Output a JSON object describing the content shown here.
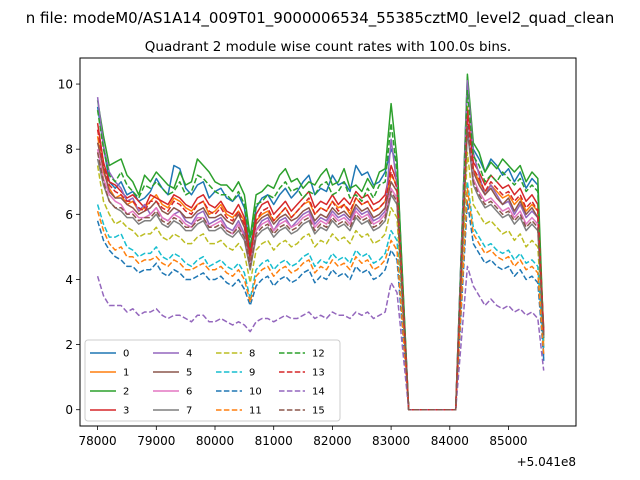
{
  "figure": {
    "suptitle": "n file: modeM0/AS1A14_009T01_9000006534_55385cztM0_level2_quad_clean",
    "title": "Quadrant 2 module wise count rates with 100.0s bins.",
    "offset_text": "+5.041e8"
  },
  "chart_data": {
    "type": "line",
    "title": "Quadrant 2 module wise count rates with 100.0s bins.",
    "xlabel": "",
    "ylabel": "",
    "x_offset": 504100000,
    "xlim": [
      77700,
      86150
    ],
    "ylim": [
      -0.5,
      10.8
    ],
    "xticks": [
      78000,
      79000,
      80000,
      81000,
      82000,
      83000,
      84000,
      85000
    ],
    "yticks": [
      0,
      2,
      4,
      6,
      8,
      10
    ],
    "grid": false,
    "legend": {
      "placement": "lower-left",
      "columns": 4
    },
    "x": [
      78000,
      78100,
      78200,
      78300,
      78400,
      78500,
      78600,
      78700,
      78800,
      78900,
      79000,
      79100,
      79200,
      79300,
      79400,
      79500,
      79600,
      79700,
      79800,
      79900,
      80000,
      80100,
      80200,
      80300,
      80400,
      80500,
      80600,
      80700,
      80800,
      80900,
      81000,
      81100,
      81200,
      81300,
      81400,
      81500,
      81600,
      81700,
      81800,
      81900,
      82000,
      82100,
      82200,
      82300,
      82400,
      82500,
      82600,
      82700,
      82800,
      82900,
      83000,
      83100,
      83300,
      84100,
      84300,
      84400,
      84500,
      84600,
      84700,
      84800,
      84900,
      85000,
      85100,
      85200,
      85300,
      85400,
      85500,
      85600
    ],
    "series": [
      {
        "name": "0",
        "color": "#1f77b4",
        "dash": "solid",
        "values": [
          9.3,
          8.1,
          7.0,
          6.8,
          7.0,
          6.6,
          6.7,
          6.4,
          6.5,
          6.7,
          7.1,
          6.8,
          6.6,
          7.5,
          7.4,
          6.8,
          6.6,
          6.9,
          7.0,
          6.5,
          6.7,
          6.8,
          6.5,
          6.4,
          6.6,
          6.2,
          4.9,
          6.2,
          6.5,
          6.6,
          6.3,
          6.6,
          6.8,
          6.5,
          6.7,
          7.0,
          7.2,
          6.6,
          6.8,
          6.7,
          7.2,
          6.9,
          7.0,
          6.7,
          7.5,
          7.2,
          7.3,
          6.9,
          7.0,
          7.3,
          8.0,
          7.6,
          0,
          0,
          10.2,
          8.0,
          7.7,
          7.3,
          7.7,
          7.5,
          7.2,
          7.4,
          7.0,
          7.3,
          6.8,
          7.1,
          6.9,
          1.5
        ]
      },
      {
        "name": "1",
        "color": "#ff7f0e",
        "dash": "solid",
        "values": [
          8.4,
          7.3,
          6.8,
          6.5,
          6.6,
          6.3,
          6.4,
          6.1,
          6.2,
          6.4,
          6.6,
          6.3,
          6.2,
          6.5,
          6.4,
          6.2,
          6.1,
          6.3,
          6.4,
          6.0,
          6.1,
          6.3,
          6.0,
          5.9,
          6.1,
          5.8,
          4.6,
          5.8,
          6.0,
          6.1,
          5.8,
          6.0,
          6.2,
          5.9,
          6.1,
          6.3,
          6.4,
          6.0,
          6.2,
          6.1,
          6.4,
          6.2,
          6.3,
          6.0,
          6.5,
          6.3,
          6.4,
          6.1,
          6.2,
          6.4,
          7.2,
          6.9,
          0,
          0,
          9.3,
          7.4,
          7.0,
          6.7,
          6.9,
          6.7,
          6.5,
          6.6,
          6.3,
          6.5,
          6.1,
          6.3,
          6.1,
          1.9
        ]
      },
      {
        "name": "2",
        "color": "#2ca02c",
        "dash": "solid",
        "values": [
          9.5,
          8.4,
          7.5,
          7.6,
          7.7,
          7.2,
          7.0,
          6.6,
          7.2,
          7.0,
          7.3,
          7.1,
          6.9,
          6.8,
          7.3,
          6.9,
          7.0,
          7.7,
          7.5,
          7.3,
          7.0,
          6.9,
          6.9,
          6.7,
          7.0,
          6.6,
          5.3,
          6.6,
          6.7,
          6.9,
          6.8,
          7.2,
          7.4,
          7.0,
          7.1,
          6.8,
          7.0,
          6.9,
          7.2,
          7.4,
          6.9,
          7.0,
          7.4,
          6.8,
          6.9,
          6.7,
          7.1,
          6.8,
          7.3,
          7.4,
          9.4,
          7.7,
          0,
          0,
          10.3,
          8.2,
          7.9,
          7.3,
          7.6,
          7.4,
          7.7,
          7.5,
          7.3,
          7.5,
          7.0,
          7.3,
          7.1,
          2.2
        ]
      },
      {
        "name": "3",
        "color": "#d62728",
        "dash": "solid",
        "values": [
          8.8,
          7.6,
          7.0,
          6.9,
          6.7,
          6.5,
          6.6,
          6.4,
          6.2,
          6.6,
          6.5,
          6.4,
          6.3,
          6.6,
          6.5,
          6.3,
          6.2,
          6.5,
          6.6,
          6.3,
          6.2,
          6.4,
          6.1,
          6.0,
          6.3,
          5.9,
          4.8,
          6.0,
          6.3,
          6.4,
          6.0,
          6.2,
          6.4,
          6.1,
          6.3,
          6.5,
          6.7,
          6.2,
          6.4,
          6.3,
          6.6,
          6.3,
          6.5,
          6.3,
          6.7,
          6.5,
          6.6,
          6.3,
          6.4,
          6.6,
          7.5,
          7.0,
          0,
          0,
          9.2,
          7.6,
          7.3,
          6.9,
          7.2,
          7.0,
          6.8,
          6.9,
          6.6,
          6.8,
          6.4,
          6.6,
          6.3,
          2.4
        ]
      },
      {
        "name": "4",
        "color": "#9467bd",
        "dash": "solid",
        "values": [
          9.6,
          8.1,
          7.3,
          7.0,
          6.8,
          6.4,
          6.5,
          6.1,
          6.3,
          6.0,
          6.2,
          5.9,
          5.8,
          6.0,
          6.1,
          5.8,
          5.7,
          6.0,
          6.1,
          5.7,
          5.8,
          5.9,
          5.6,
          5.5,
          5.8,
          5.4,
          4.3,
          5.5,
          5.8,
          5.9,
          5.5,
          5.8,
          5.9,
          5.6,
          5.8,
          6.0,
          6.1,
          5.7,
          5.9,
          5.8,
          6.1,
          5.9,
          6.0,
          5.8,
          6.2,
          6.0,
          6.1,
          5.8,
          5.9,
          6.1,
          8.3,
          6.9,
          0,
          0,
          10.1,
          7.9,
          7.2,
          6.6,
          6.9,
          6.6,
          6.3,
          6.4,
          6.0,
          6.3,
          5.9,
          6.1,
          5.9,
          2.3
        ]
      },
      {
        "name": "5",
        "color": "#8c564b",
        "dash": "solid",
        "values": [
          8.2,
          7.4,
          6.7,
          6.5,
          6.5,
          6.3,
          6.2,
          6.0,
          6.1,
          6.2,
          6.4,
          6.1,
          6.0,
          6.2,
          6.1,
          5.9,
          5.9,
          6.1,
          6.2,
          5.9,
          5.9,
          6.0,
          5.8,
          5.7,
          6.0,
          5.6,
          4.5,
          5.7,
          5.9,
          6.0,
          5.7,
          5.9,
          6.0,
          5.8,
          5.9,
          6.1,
          6.2,
          5.8,
          6.0,
          5.9,
          6.2,
          6.0,
          6.1,
          5.9,
          6.3,
          6.1,
          6.2,
          5.9,
          6.0,
          6.2,
          7.0,
          6.7,
          0,
          0,
          8.8,
          7.3,
          6.9,
          6.6,
          6.8,
          6.5,
          6.3,
          6.5,
          6.1,
          6.4,
          6.0,
          6.2,
          5.9,
          2.5
        ]
      },
      {
        "name": "6",
        "color": "#e377c2",
        "dash": "solid",
        "values": [
          8.0,
          7.1,
          6.6,
          6.4,
          6.3,
          6.0,
          6.1,
          5.9,
          5.9,
          6.0,
          6.2,
          5.9,
          5.8,
          6.0,
          5.9,
          5.7,
          5.6,
          5.9,
          5.9,
          5.6,
          5.7,
          5.8,
          5.5,
          5.4,
          5.7,
          5.3,
          4.4,
          5.5,
          5.7,
          5.8,
          5.5,
          5.7,
          5.8,
          5.6,
          5.7,
          5.9,
          6.0,
          5.6,
          5.8,
          5.7,
          6.0,
          5.8,
          5.9,
          5.7,
          6.1,
          5.9,
          6.0,
          5.7,
          5.8,
          6.0,
          6.8,
          6.5,
          0,
          0,
          9.0,
          7.1,
          6.7,
          6.4,
          6.5,
          6.3,
          6.1,
          6.2,
          5.9,
          6.1,
          5.7,
          5.9,
          5.7,
          2.3
        ]
      },
      {
        "name": "7",
        "color": "#7f7f7f",
        "dash": "solid",
        "values": [
          7.7,
          6.9,
          6.4,
          6.2,
          6.1,
          5.9,
          5.9,
          5.7,
          5.8,
          5.8,
          6.0,
          5.7,
          5.6,
          5.8,
          5.7,
          5.5,
          5.5,
          5.7,
          5.8,
          5.5,
          5.5,
          5.6,
          5.4,
          5.3,
          5.5,
          5.2,
          4.3,
          5.3,
          5.5,
          5.6,
          5.3,
          5.5,
          5.6,
          5.4,
          5.5,
          5.7,
          5.8,
          5.4,
          5.6,
          5.5,
          5.8,
          5.6,
          5.7,
          5.5,
          5.9,
          5.7,
          5.8,
          5.5,
          5.6,
          5.8,
          6.6,
          6.3,
          0,
          0,
          8.6,
          6.9,
          6.5,
          6.2,
          6.3,
          6.1,
          5.9,
          6.0,
          5.7,
          5.9,
          5.5,
          5.7,
          5.5,
          2.2
        ]
      },
      {
        "name": "8",
        "color": "#bcbd22",
        "dash": "dashed",
        "values": [
          7.5,
          6.4,
          6.0,
          5.7,
          5.8,
          5.6,
          5.5,
          5.3,
          5.4,
          5.4,
          5.6,
          5.3,
          5.2,
          5.4,
          5.3,
          5.1,
          5.1,
          5.3,
          5.4,
          5.1,
          5.1,
          5.2,
          5.0,
          4.9,
          5.1,
          4.8,
          3.9,
          4.9,
          5.1,
          5.2,
          4.9,
          5.1,
          5.2,
          5.0,
          5.1,
          5.3,
          5.4,
          5.0,
          5.2,
          5.1,
          5.4,
          5.2,
          5.3,
          5.1,
          5.5,
          5.3,
          5.4,
          5.1,
          5.2,
          5.4,
          6.2,
          5.9,
          0,
          0,
          7.9,
          6.3,
          6.0,
          5.7,
          5.8,
          5.6,
          5.4,
          5.5,
          5.2,
          5.4,
          5.0,
          5.2,
          5.0,
          2.1
        ]
      },
      {
        "name": "9",
        "color": "#17becf",
        "dash": "dashed",
        "values": [
          6.3,
          5.7,
          5.3,
          5.3,
          5.4,
          5.0,
          4.9,
          4.7,
          4.8,
          4.8,
          5.0,
          4.7,
          4.6,
          4.8,
          4.7,
          4.5,
          4.4,
          4.6,
          4.7,
          4.4,
          4.5,
          4.6,
          4.4,
          4.3,
          4.5,
          4.2,
          3.4,
          4.3,
          4.5,
          4.6,
          4.3,
          4.5,
          4.6,
          4.4,
          4.5,
          4.7,
          4.8,
          4.4,
          4.6,
          4.5,
          4.8,
          4.6,
          4.7,
          4.5,
          4.9,
          4.7,
          4.8,
          4.5,
          4.6,
          4.8,
          5.5,
          5.2,
          0,
          0,
          7.0,
          5.6,
          5.3,
          5.0,
          5.1,
          4.9,
          4.8,
          4.9,
          4.6,
          4.8,
          4.5,
          4.6,
          4.4,
          1.9
        ]
      },
      {
        "name": "10",
        "color": "#1f77b4",
        "dash": "dashed",
        "values": [
          5.8,
          5.2,
          4.9,
          4.7,
          4.6,
          4.4,
          4.4,
          4.2,
          4.3,
          4.3,
          4.5,
          4.2,
          4.1,
          4.3,
          4.2,
          4.0,
          4.0,
          4.1,
          4.2,
          4.0,
          4.0,
          4.1,
          3.9,
          3.8,
          4.0,
          3.7,
          3.2,
          3.8,
          4.0,
          4.1,
          3.8,
          4.0,
          4.1,
          3.9,
          4.0,
          4.2,
          4.3,
          3.9,
          4.1,
          4.0,
          4.3,
          4.1,
          4.2,
          4.0,
          4.4,
          4.2,
          4.3,
          4.0,
          4.1,
          4.3,
          4.9,
          4.6,
          0,
          0,
          6.4,
          5.1,
          4.8,
          4.5,
          4.6,
          4.4,
          4.3,
          4.4,
          4.1,
          4.3,
          4.0,
          4.1,
          3.9,
          1.6
        ]
      },
      {
        "name": "11",
        "color": "#ff7f0e",
        "dash": "dashed",
        "values": [
          6.1,
          5.5,
          5.1,
          4.9,
          5.0,
          4.7,
          4.7,
          4.5,
          4.6,
          4.6,
          4.7,
          4.5,
          4.4,
          4.6,
          4.5,
          4.3,
          4.3,
          4.4,
          4.5,
          4.3,
          4.3,
          4.4,
          4.2,
          4.1,
          4.3,
          4.0,
          3.3,
          4.1,
          4.3,
          4.4,
          4.1,
          4.3,
          4.4,
          4.2,
          4.3,
          4.5,
          4.6,
          4.2,
          4.4,
          4.3,
          4.6,
          4.4,
          4.5,
          4.3,
          4.7,
          4.5,
          4.6,
          4.3,
          4.4,
          4.6,
          5.2,
          4.9,
          0,
          0,
          6.8,
          5.4,
          5.1,
          4.8,
          4.9,
          4.7,
          4.6,
          4.7,
          4.4,
          4.6,
          4.3,
          4.4,
          4.2,
          1.7
        ]
      },
      {
        "name": "12",
        "color": "#2ca02c",
        "dash": "dashed",
        "values": [
          9.2,
          8.0,
          7.2,
          7.0,
          7.3,
          6.9,
          6.7,
          6.5,
          6.9,
          6.8,
          7.0,
          6.8,
          6.6,
          6.7,
          7.0,
          6.6,
          6.7,
          7.2,
          7.1,
          6.9,
          6.7,
          6.6,
          6.6,
          6.4,
          6.7,
          6.3,
          5.0,
          6.3,
          6.4,
          6.6,
          6.5,
          6.8,
          7.0,
          6.7,
          6.8,
          6.5,
          6.7,
          6.6,
          6.9,
          7.0,
          6.6,
          6.7,
          7.0,
          6.5,
          6.6,
          6.4,
          6.8,
          6.5,
          6.9,
          7.0,
          8.8,
          7.3,
          0,
          0,
          9.8,
          7.8,
          7.5,
          7.0,
          7.2,
          7.0,
          7.3,
          7.1,
          6.9,
          7.1,
          6.7,
          6.9,
          6.7,
          2.2
        ]
      },
      {
        "name": "13",
        "color": "#d62728",
        "dash": "dashed",
        "values": [
          8.6,
          7.5,
          6.9,
          6.7,
          6.6,
          6.4,
          6.4,
          6.2,
          6.1,
          6.4,
          6.4,
          6.2,
          6.1,
          6.4,
          6.3,
          6.1,
          6.0,
          6.3,
          6.4,
          6.1,
          6.0,
          6.2,
          5.9,
          5.8,
          6.1,
          5.7,
          4.7,
          5.8,
          6.1,
          6.2,
          5.8,
          6.0,
          6.2,
          5.9,
          6.1,
          6.3,
          6.5,
          6.0,
          6.2,
          6.1,
          6.4,
          6.1,
          6.3,
          6.1,
          6.5,
          6.3,
          6.4,
          6.1,
          6.2,
          6.4,
          7.3,
          6.8,
          0,
          0,
          9.0,
          7.4,
          7.1,
          6.7,
          7.0,
          6.8,
          6.6,
          6.7,
          6.4,
          6.6,
          6.2,
          6.4,
          6.1,
          2.3
        ]
      },
      {
        "name": "14",
        "color": "#9467bd",
        "dash": "dashed",
        "values": [
          4.1,
          3.5,
          3.2,
          3.2,
          3.2,
          3.0,
          3.1,
          2.9,
          3.0,
          3.0,
          3.1,
          2.9,
          2.8,
          2.9,
          2.9,
          2.8,
          2.7,
          2.9,
          2.9,
          2.7,
          2.7,
          2.8,
          2.7,
          2.6,
          2.7,
          2.6,
          2.4,
          2.7,
          2.8,
          2.8,
          2.7,
          2.8,
          2.9,
          2.8,
          2.8,
          2.9,
          3.0,
          2.8,
          2.9,
          2.8,
          3.0,
          2.9,
          2.9,
          2.8,
          3.0,
          2.9,
          3.0,
          2.8,
          2.9,
          3.0,
          3.9,
          3.6,
          0,
          0,
          4.4,
          3.8,
          3.5,
          3.2,
          3.4,
          3.2,
          3.1,
          3.2,
          3.0,
          3.1,
          2.9,
          3.0,
          2.8,
          1.2
        ]
      },
      {
        "name": "15",
        "color": "#8c564b",
        "dash": "dashed",
        "values": [
          7.9,
          7.0,
          6.4,
          6.2,
          6.2,
          6.0,
          6.0,
          5.8,
          5.9,
          5.9,
          6.1,
          5.8,
          5.7,
          5.9,
          5.8,
          5.6,
          5.6,
          5.8,
          5.9,
          5.6,
          5.6,
          5.7,
          5.5,
          5.4,
          5.6,
          5.3,
          4.4,
          5.4,
          5.6,
          5.7,
          5.4,
          5.6,
          5.7,
          5.5,
          5.6,
          5.8,
          5.9,
          5.5,
          5.7,
          5.6,
          5.9,
          5.7,
          5.8,
          5.6,
          6.0,
          5.8,
          5.9,
          5.6,
          5.7,
          5.9,
          6.7,
          6.4,
          0,
          0,
          8.7,
          7.0,
          6.6,
          6.3,
          6.4,
          6.2,
          6.0,
          6.1,
          5.8,
          6.0,
          5.6,
          5.8,
          5.6,
          2.2
        ]
      }
    ]
  }
}
